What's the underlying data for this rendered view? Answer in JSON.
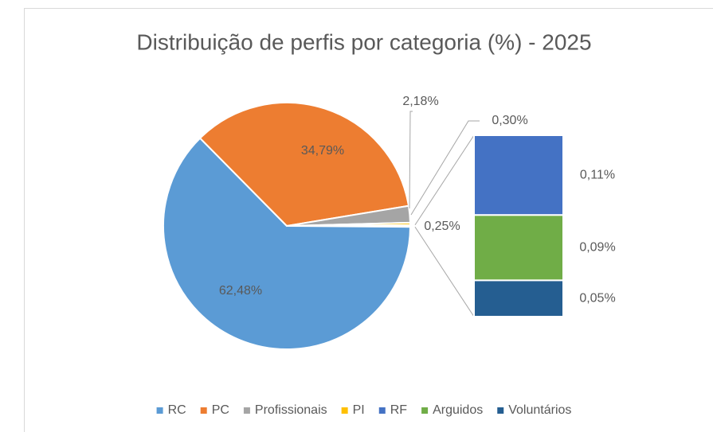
{
  "chart_data": {
    "type": "pie-of-bar",
    "title": "Distribuição de perfis por categoria (%) - 2025",
    "categories": [
      "RC",
      "PC",
      "Profissionais",
      "PI",
      "RF",
      "Arguidos",
      "Voluntários"
    ],
    "values": [
      62.48,
      34.79,
      2.18,
      0.3,
      0.11,
      0.09,
      0.05
    ],
    "value_labels": [
      "62,48%",
      "34,79%",
      "2,18%",
      "0,30%",
      "0,11%",
      "0,09%",
      "0,05%"
    ],
    "colors": [
      "#5b9bd5",
      "#ed7d31",
      "#a5a5a5",
      "#ffc000",
      "#4472c4",
      "#70ad47",
      "#255e91"
    ],
    "other_value": 0.25,
    "other_value_label": "0,25%",
    "legend": "bottom"
  }
}
